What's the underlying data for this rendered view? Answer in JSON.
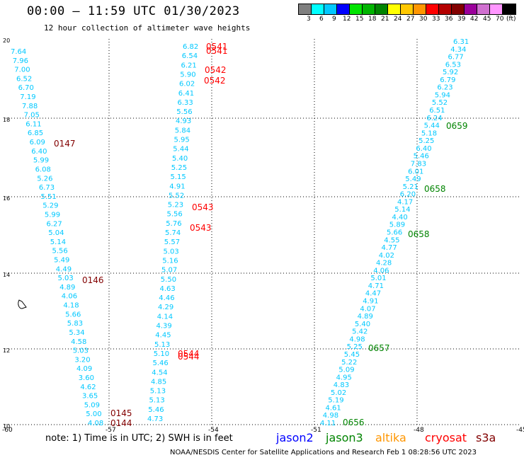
{
  "header": {
    "title": "00:00 – 11:59 UTC 01/30/2023",
    "subtitle": "12 hour collection of altimeter wave heights"
  },
  "legend": {
    "colors": [
      "#7f7f7f",
      "#00ffff",
      "#00c8ff",
      "#0000ff",
      "#00e400",
      "#00b400",
      "#008400",
      "#ffff00",
      "#ffc800",
      "#ff9600",
      "#ff0000",
      "#b40000",
      "#820000",
      "#9b009b",
      "#d070d0",
      "#ff96ff",
      "#000000"
    ],
    "labels": [
      "3",
      "6",
      "9",
      "12",
      "15",
      "18",
      "21",
      "24",
      "27",
      "30",
      "33",
      "36",
      "39",
      "42",
      "45",
      "70",
      "(ft)"
    ]
  },
  "axes": {
    "x_ticks": [
      "-60",
      "-57",
      "-54",
      "-51",
      "-48",
      "-45"
    ],
    "y_ticks": [
      "20",
      "18",
      "16",
      "14",
      "12",
      "10"
    ]
  },
  "note": "note: 1) Time is in UTC; 2) SWH is in feet",
  "satellites": [
    {
      "name": "jason2",
      "color": "#0000ff"
    },
    {
      "name": "jason3",
      "color": "#008400"
    },
    {
      "name": "altika",
      "color": "#ff9600"
    },
    {
      "name": "cryosat",
      "color": "#ff0000"
    },
    {
      "name": "s3a",
      "color": "#820000"
    }
  ],
  "footer": "NOAA/NESDIS Center for Satellite Applications and Research    Feb  1 08:28:56 UTC 2023",
  "chart_data": {
    "type": "scatter",
    "wave_color": "#00c8ff",
    "tracks": [
      {
        "name": "track-1",
        "values": [
          "7.64",
          "7.96",
          "7.00",
          "6.52",
          "6.70",
          "7.19",
          "7.88",
          "7.05",
          "6.11",
          "6.85",
          "6.09",
          "6.40",
          "5.99",
          "6.08",
          "5.26",
          "6.73",
          "5.51",
          "5.29",
          "5.99",
          "6.27",
          "5.04",
          "5.14",
          "5.56",
          "5.49",
          "4.49",
          "5.03",
          "4.89",
          "4.06",
          "4.18",
          "5.66",
          "5.83",
          "5.34",
          "4.58",
          "5.03",
          "3.20",
          "4.09",
          "3.60",
          "4.62",
          "3.65",
          "5.09",
          "5.00",
          "4.08"
        ]
      },
      {
        "name": "track-2",
        "values": [
          "6.82",
          "6.54",
          "6.21",
          "5.90",
          "6.02",
          "6.41",
          "6.33",
          "5.56",
          "4.93",
          "5.84",
          "5.95",
          "5.44",
          "5.40",
          "5.25",
          "5.15",
          "4.91",
          "5.52",
          "5.23",
          "5.56",
          "5.76",
          "5.74",
          "5.57",
          "5.03",
          "5.16",
          "5.07",
          "5.50",
          "4.63",
          "4.46",
          "4.29",
          "4.14",
          "4.39",
          "4.45",
          "5.13",
          "5.10",
          "5.46",
          "4.54",
          "4.85",
          "5.13",
          "5.13",
          "5.46",
          "4.73"
        ]
      },
      {
        "name": "track-3",
        "values": [
          "6.31",
          "4.34",
          "6.77",
          "6.53",
          "5.92",
          "6.79",
          "6.23",
          "5.94",
          "5.52",
          "6.51",
          "6.24",
          "5.44",
          "5.18",
          "5.25",
          "6.40",
          "5.46",
          "7.83",
          "6.01",
          "5.49",
          "5.21",
          "6.20",
          "4.17",
          "5.14",
          "4.40",
          "5.89",
          "5.66",
          "4.55",
          "4.77",
          "4.02",
          "4.28",
          "4.06",
          "5.01",
          "4.71",
          "4.47",
          "4.91",
          "4.07",
          "4.89",
          "5.40",
          "5.42",
          "4.98",
          "5.25",
          "5.45",
          "5.22",
          "5.09",
          "4.95",
          "4.83",
          "5.02",
          "5.19",
          "4.61",
          "4.98",
          "4.11"
        ]
      }
    ],
    "time_labels": [
      {
        "time": "0541",
        "color": "#ff0000"
      },
      {
        "time": "0541",
        "color": "#ff0000"
      },
      {
        "time": "0542",
        "color": "#ff0000"
      },
      {
        "time": "0542",
        "color": "#ff0000"
      },
      {
        "time": "0543",
        "color": "#ff0000"
      },
      {
        "time": "0543",
        "color": "#ff0000"
      },
      {
        "time": "0544",
        "color": "#ff0000"
      },
      {
        "time": "0544",
        "color": "#ff0000"
      },
      {
        "time": "0147",
        "color": "#820000"
      },
      {
        "time": "0146",
        "color": "#820000"
      },
      {
        "time": "0145",
        "color": "#820000"
      },
      {
        "time": "0144",
        "color": "#820000"
      },
      {
        "time": "0659",
        "color": "#008400"
      },
      {
        "time": "0658",
        "color": "#008400"
      },
      {
        "time": "0658",
        "color": "#008400"
      },
      {
        "time": "0657",
        "color": "#008400"
      },
      {
        "time": "0656",
        "color": "#008400"
      }
    ]
  }
}
